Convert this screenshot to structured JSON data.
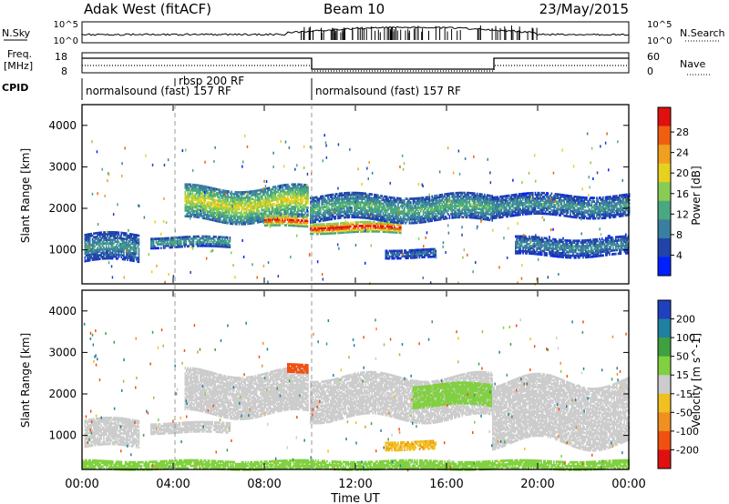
{
  "header": {
    "station": "Adak West (fitACF)",
    "beam": "Beam 10",
    "date": "23/May/2015"
  },
  "strips": {
    "nsky_label": "N.Sky",
    "nsearch_label": "N.Search",
    "noise_ticks": [
      "10^5",
      "10^0"
    ],
    "freq_label": "Freq.",
    "freq_unit": "[MHz]",
    "freq_ticks": [
      "18",
      "8"
    ],
    "nave_label": "Nave",
    "nave_ticks": [
      "60",
      "0"
    ],
    "cpid_label": "CPID",
    "cpid_segments": [
      {
        "label": "normalsound (fast) 157 RF",
        "start_h": 0,
        "end_h": 10
      },
      {
        "label": "rbsp 200 RF",
        "start_h": 4.2,
        "end_h": 4.6
      },
      {
        "label": "normalsound (fast) 157 RF",
        "start_h": 10,
        "end_h": 24
      }
    ]
  },
  "time_axis": {
    "label": "Time UT",
    "ticks": [
      "00:00",
      "04:00",
      "08:00",
      "12:00",
      "16:00",
      "20:00",
      "00:00"
    ]
  },
  "chart_data": [
    {
      "type": "heatmap",
      "title": "",
      "xlabel": "Time UT",
      "ylabel": "Slant Range [km]",
      "xlim": [
        0,
        24
      ],
      "ylim": [
        180,
        4500
      ],
      "yticks": [
        1000,
        2000,
        3000,
        4000
      ],
      "colorbar": {
        "label": "Power [dB]",
        "ticks": [
          "4",
          "8",
          "12",
          "16",
          "20",
          "24",
          "28"
        ],
        "colors": [
          "#0020ff",
          "#2244aa",
          "#3a7fa0",
          "#4aa880",
          "#88cc55",
          "#e6d020",
          "#f0a020",
          "#ee6010",
          "#e01010"
        ]
      },
      "echo_bands": [
        {
          "t_start": 0.1,
          "t_end": 2.5,
          "r_lo": 700,
          "r_hi": 1350,
          "power_db": 10
        },
        {
          "t_start": 3.0,
          "t_end": 6.5,
          "r_lo": 1050,
          "r_hi": 1300,
          "power_db": 11
        },
        {
          "t_start": 4.5,
          "t_end": 9.9,
          "r_lo": 1700,
          "r_hi": 2500,
          "power_db": 17
        },
        {
          "t_start": 8.0,
          "t_end": 9.9,
          "r_lo": 1550,
          "r_hi": 1800,
          "power_db": 27
        },
        {
          "t_start": 10.0,
          "t_end": 14.0,
          "r_lo": 1400,
          "r_hi": 1650,
          "power_db": 28
        },
        {
          "t_start": 10.0,
          "t_end": 18.0,
          "r_lo": 1700,
          "r_hi": 2300,
          "power_db": 12
        },
        {
          "t_start": 13.3,
          "t_end": 15.5,
          "r_lo": 800,
          "r_hi": 1000,
          "power_db": 8
        },
        {
          "t_start": 18.0,
          "t_end": 24.0,
          "r_lo": 1800,
          "r_hi": 2300,
          "power_db": 10
        },
        {
          "t_start": 19.0,
          "t_end": 24.0,
          "r_lo": 850,
          "r_hi": 1300,
          "power_db": 9
        }
      ]
    },
    {
      "type": "heatmap",
      "title": "",
      "xlabel": "Time UT",
      "ylabel": "Slant Range [km]",
      "xlim": [
        0,
        24
      ],
      "ylim": [
        180,
        4500
      ],
      "yticks": [
        1000,
        2000,
        3000,
        4000
      ],
      "colorbar": {
        "label": "Velocity [m s^-1]",
        "ticks": [
          "200",
          "100",
          "50",
          "15",
          "-15",
          "-50",
          "-100",
          "-200"
        ],
        "colors": [
          "#2040c0",
          "#2080a0",
          "#40a040",
          "#80d040",
          "#cccccc",
          "#f0c020",
          "#f09020",
          "#f05010",
          "#e01010"
        ]
      },
      "echo_bands": [
        {
          "t_start": 0.1,
          "t_end": 2.5,
          "r_lo": 700,
          "r_hi": 1350,
          "velocity": 0
        },
        {
          "t_start": 3.0,
          "t_end": 6.5,
          "r_lo": 1050,
          "r_hi": 1300,
          "velocity": 0
        },
        {
          "t_start": 4.5,
          "t_end": 9.9,
          "r_lo": 1500,
          "r_hi": 2500,
          "velocity": 0
        },
        {
          "t_start": 9.0,
          "t_end": 9.9,
          "r_lo": 2500,
          "r_hi": 2700,
          "velocity": -150
        },
        {
          "t_start": 10.0,
          "t_end": 18.0,
          "r_lo": 1400,
          "r_hi": 2400,
          "velocity": 0
        },
        {
          "t_start": 14.5,
          "t_end": 18.0,
          "r_lo": 1700,
          "r_hi": 2200,
          "velocity": 30
        },
        {
          "t_start": 13.3,
          "t_end": 15.5,
          "r_lo": 650,
          "r_hi": 850,
          "velocity": -40
        },
        {
          "t_start": 18.0,
          "t_end": 24.0,
          "r_lo": 800,
          "r_hi": 2300,
          "velocity": 0
        },
        {
          "t_start": 0.0,
          "t_end": 24.0,
          "r_lo": 180,
          "r_hi": 380,
          "velocity": 30
        }
      ]
    }
  ]
}
